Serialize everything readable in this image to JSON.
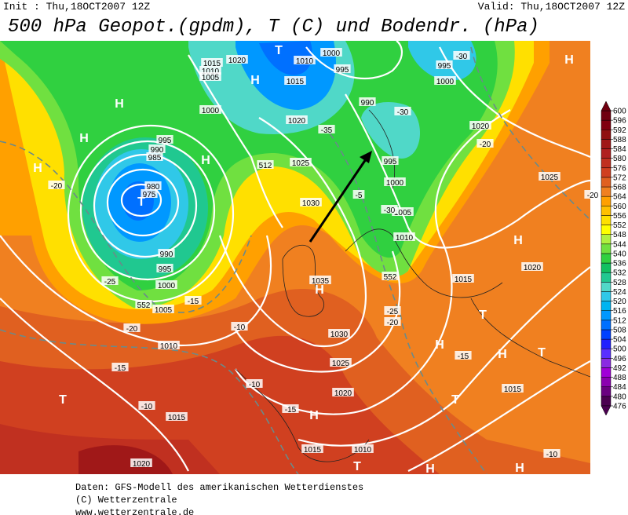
{
  "header": {
    "init": "Init : Thu,18OCT2007  12Z",
    "valid": "Valid: Thu,18OCT2007  12Z",
    "title": "500 hPa Geopot.(gpdm), T (C) und Bodendr. (hPa)"
  },
  "map_labels": [
    "H",
    "H",
    "H",
    "H",
    "T",
    "980",
    "975",
    "985",
    "990",
    "995",
    "990",
    "995",
    "1000",
    "1005",
    "1010",
    "1015",
    "1020",
    "T",
    "H",
    "T",
    "1010",
    "1000",
    "995",
    "1015",
    "1020",
    "1025",
    "1030",
    "1035",
    "H",
    "1030",
    "1025",
    "1020",
    "H",
    "1015",
    "1010",
    "H",
    "H",
    "T",
    "T",
    "T",
    "H",
    "1020",
    "1015",
    "1015",
    "1020",
    "1025",
    "995",
    "1000",
    "1005",
    "1010",
    "1000",
    "995",
    "990",
    "1020",
    "1015",
    "1010",
    "1005",
    "1000",
    "H",
    "-30",
    "-30",
    "-20",
    "-20",
    "-25",
    "-20",
    "-15",
    "-10",
    "-15",
    "-10",
    "-10",
    "-15",
    "-5",
    "-30",
    "-35",
    "-25",
    "-20",
    "-10",
    "-15",
    "-20",
    "T",
    "H",
    "H",
    "552",
    "552",
    "512"
  ],
  "colorbar": {
    "ticks": [
      476,
      480,
      484,
      488,
      492,
      496,
      500,
      504,
      508,
      512,
      516,
      520,
      524,
      528,
      532,
      536,
      540,
      544,
      548,
      552,
      556,
      560,
      564,
      568,
      572,
      576,
      580,
      584,
      588,
      592,
      596,
      600
    ],
    "colors": [
      "#4b0050",
      "#6a0080",
      "#8b00b0",
      "#a000d8",
      "#8a2be2",
      "#5a30ff",
      "#2020ff",
      "#0040ff",
      "#0070ff",
      "#0098ff",
      "#00b4f0",
      "#30c8e8",
      "#50d8c8",
      "#20c890",
      "#10c060",
      "#30d040",
      "#70e040",
      "#b0f040",
      "#ffff00",
      "#ffe000",
      "#ffc000",
      "#ffa000",
      "#f08020",
      "#e06020",
      "#d04020",
      "#c03020",
      "#b02020",
      "#a01818",
      "#901010",
      "#800010",
      "#700010"
    ]
  },
  "footer": [
    "Daten: GFS-Modell des amerikanischen Wetterdienstes",
    "(C) Wetterzentrale",
    "www.wetterzentrale.de"
  ]
}
